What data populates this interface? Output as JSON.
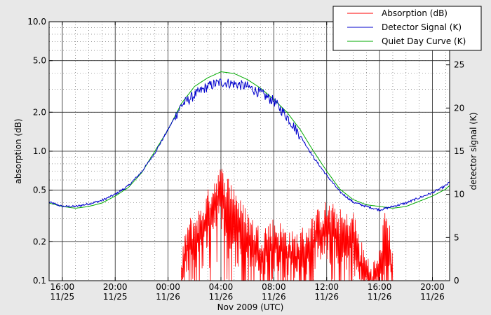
{
  "chart_data": {
    "type": "line",
    "xlabel": "Nov 2009 (UTC)",
    "ylabel_left": "absorption (dB)",
    "ylabel_right": "detector signal (K)",
    "x_range_hours": [
      -9.0,
      21.3
    ],
    "x_ticks": [
      {
        "hour": -8,
        "time": "16:00",
        "date": "11/25"
      },
      {
        "hour": -4,
        "time": "20:00",
        "date": "11/25"
      },
      {
        "hour": 0,
        "time": "00:00",
        "date": "11/26"
      },
      {
        "hour": 4,
        "time": "04:00",
        "date": "11/26"
      },
      {
        "hour": 8,
        "time": "08:00",
        "date": "11/26"
      },
      {
        "hour": 12,
        "time": "12:00",
        "date": "11/26"
      },
      {
        "hour": 16,
        "time": "16:00",
        "date": "11/26"
      },
      {
        "hour": 20,
        "time": "20:00",
        "date": "11/26"
      },
      {
        "hour": 24,
        "time": "00:00",
        "date": "11/27"
      }
    ],
    "left_axis": {
      "scale": "log",
      "range": [
        0.1,
        10.0
      ],
      "tick_labels": [
        "0.1",
        "0.2",
        "0.5",
        "1.0",
        "2.0",
        "5.0",
        "10.0"
      ],
      "tick_values": [
        0.1,
        0.2,
        0.5,
        1.0,
        2.0,
        5.0,
        10.0
      ]
    },
    "right_axis": {
      "scale": "linear",
      "range": [
        0,
        30
      ],
      "tick_values": [
        0,
        5,
        10,
        15,
        20,
        25
      ]
    },
    "grid": true,
    "legend": {
      "placement": "top-right",
      "entries": [
        {
          "name": "Absorption (dB)",
          "color": "#ff0000"
        },
        {
          "name": "Detector Signal (K)",
          "color": "#0000cc"
        },
        {
          "name": "Quiet Day Curve (K)",
          "color": "#00aa00"
        }
      ]
    },
    "series": [
      {
        "name": "Quiet Day Curve (K)",
        "axis": "right",
        "color": "#00aa00",
        "x": [
          -9,
          -8,
          -7,
          -6,
          -5,
          -4,
          -3,
          -2,
          -1,
          0,
          1,
          2,
          3,
          4,
          5,
          6,
          7,
          8,
          9,
          10,
          11,
          12,
          13,
          14,
          15,
          16,
          17,
          18,
          19,
          20,
          21,
          22,
          23,
          24,
          25,
          26
        ],
        "values": [
          9.0,
          8.6,
          8.4,
          8.6,
          9.0,
          9.8,
          10.8,
          12.5,
          15.0,
          17.5,
          20.5,
          22.5,
          23.5,
          24.2,
          24.0,
          23.3,
          22.3,
          21.0,
          19.5,
          17.5,
          15.0,
          12.7,
          10.6,
          9.4,
          8.8,
          8.6,
          8.4,
          8.6,
          9.2,
          9.8,
          10.6,
          12.0,
          14.2,
          17.0,
          20.0,
          22.5
        ]
      },
      {
        "name": "Detector Signal (K)",
        "axis": "right",
        "color": "#0000cc",
        "x": [
          -9,
          -8,
          -7,
          -6,
          -5,
          -4,
          -3,
          -2,
          -1,
          0,
          1,
          2,
          3,
          4,
          5,
          6,
          7,
          8,
          9,
          10,
          11,
          12,
          13,
          14,
          15,
          16,
          17,
          18,
          19,
          20,
          21,
          22,
          23,
          24,
          25,
          26
        ],
        "values": [
          9.1,
          8.6,
          8.6,
          8.9,
          9.3,
          10.0,
          11.0,
          12.6,
          14.8,
          17.5,
          20.3,
          21.5,
          22.5,
          23.0,
          22.8,
          22.5,
          21.7,
          20.8,
          19.0,
          16.8,
          14.3,
          12.2,
          10.3,
          9.1,
          8.6,
          8.2,
          8.6,
          9.0,
          9.6,
          10.2,
          11.0,
          12.4,
          14.6,
          17.5,
          20.4,
          22.8
        ]
      },
      {
        "name": "Absorption (dB)",
        "axis": "left",
        "color": "#ff0000",
        "x": [
          1.0,
          1.5,
          2.0,
          2.5,
          3.0,
          3.5,
          4.0,
          4.5,
          5.0,
          5.5,
          6.0,
          6.5,
          7.0,
          7.5,
          8.0,
          8.5,
          9.0,
          9.5,
          10.0,
          10.5,
          11.0,
          11.5,
          12.0,
          12.5,
          13.0,
          13.5,
          14.0,
          14.5,
          15.0,
          15.5,
          16.0,
          16.5,
          17.0
        ],
        "values": [
          0.12,
          0.25,
          0.28,
          0.32,
          0.42,
          0.55,
          0.65,
          0.55,
          0.48,
          0.35,
          0.3,
          0.25,
          0.22,
          0.24,
          0.26,
          0.24,
          0.22,
          0.2,
          0.21,
          0.24,
          0.27,
          0.32,
          0.35,
          0.33,
          0.3,
          0.28,
          0.3,
          0.18,
          0.14,
          0.12,
          0.15,
          0.32,
          0.13
        ]
      }
    ]
  }
}
